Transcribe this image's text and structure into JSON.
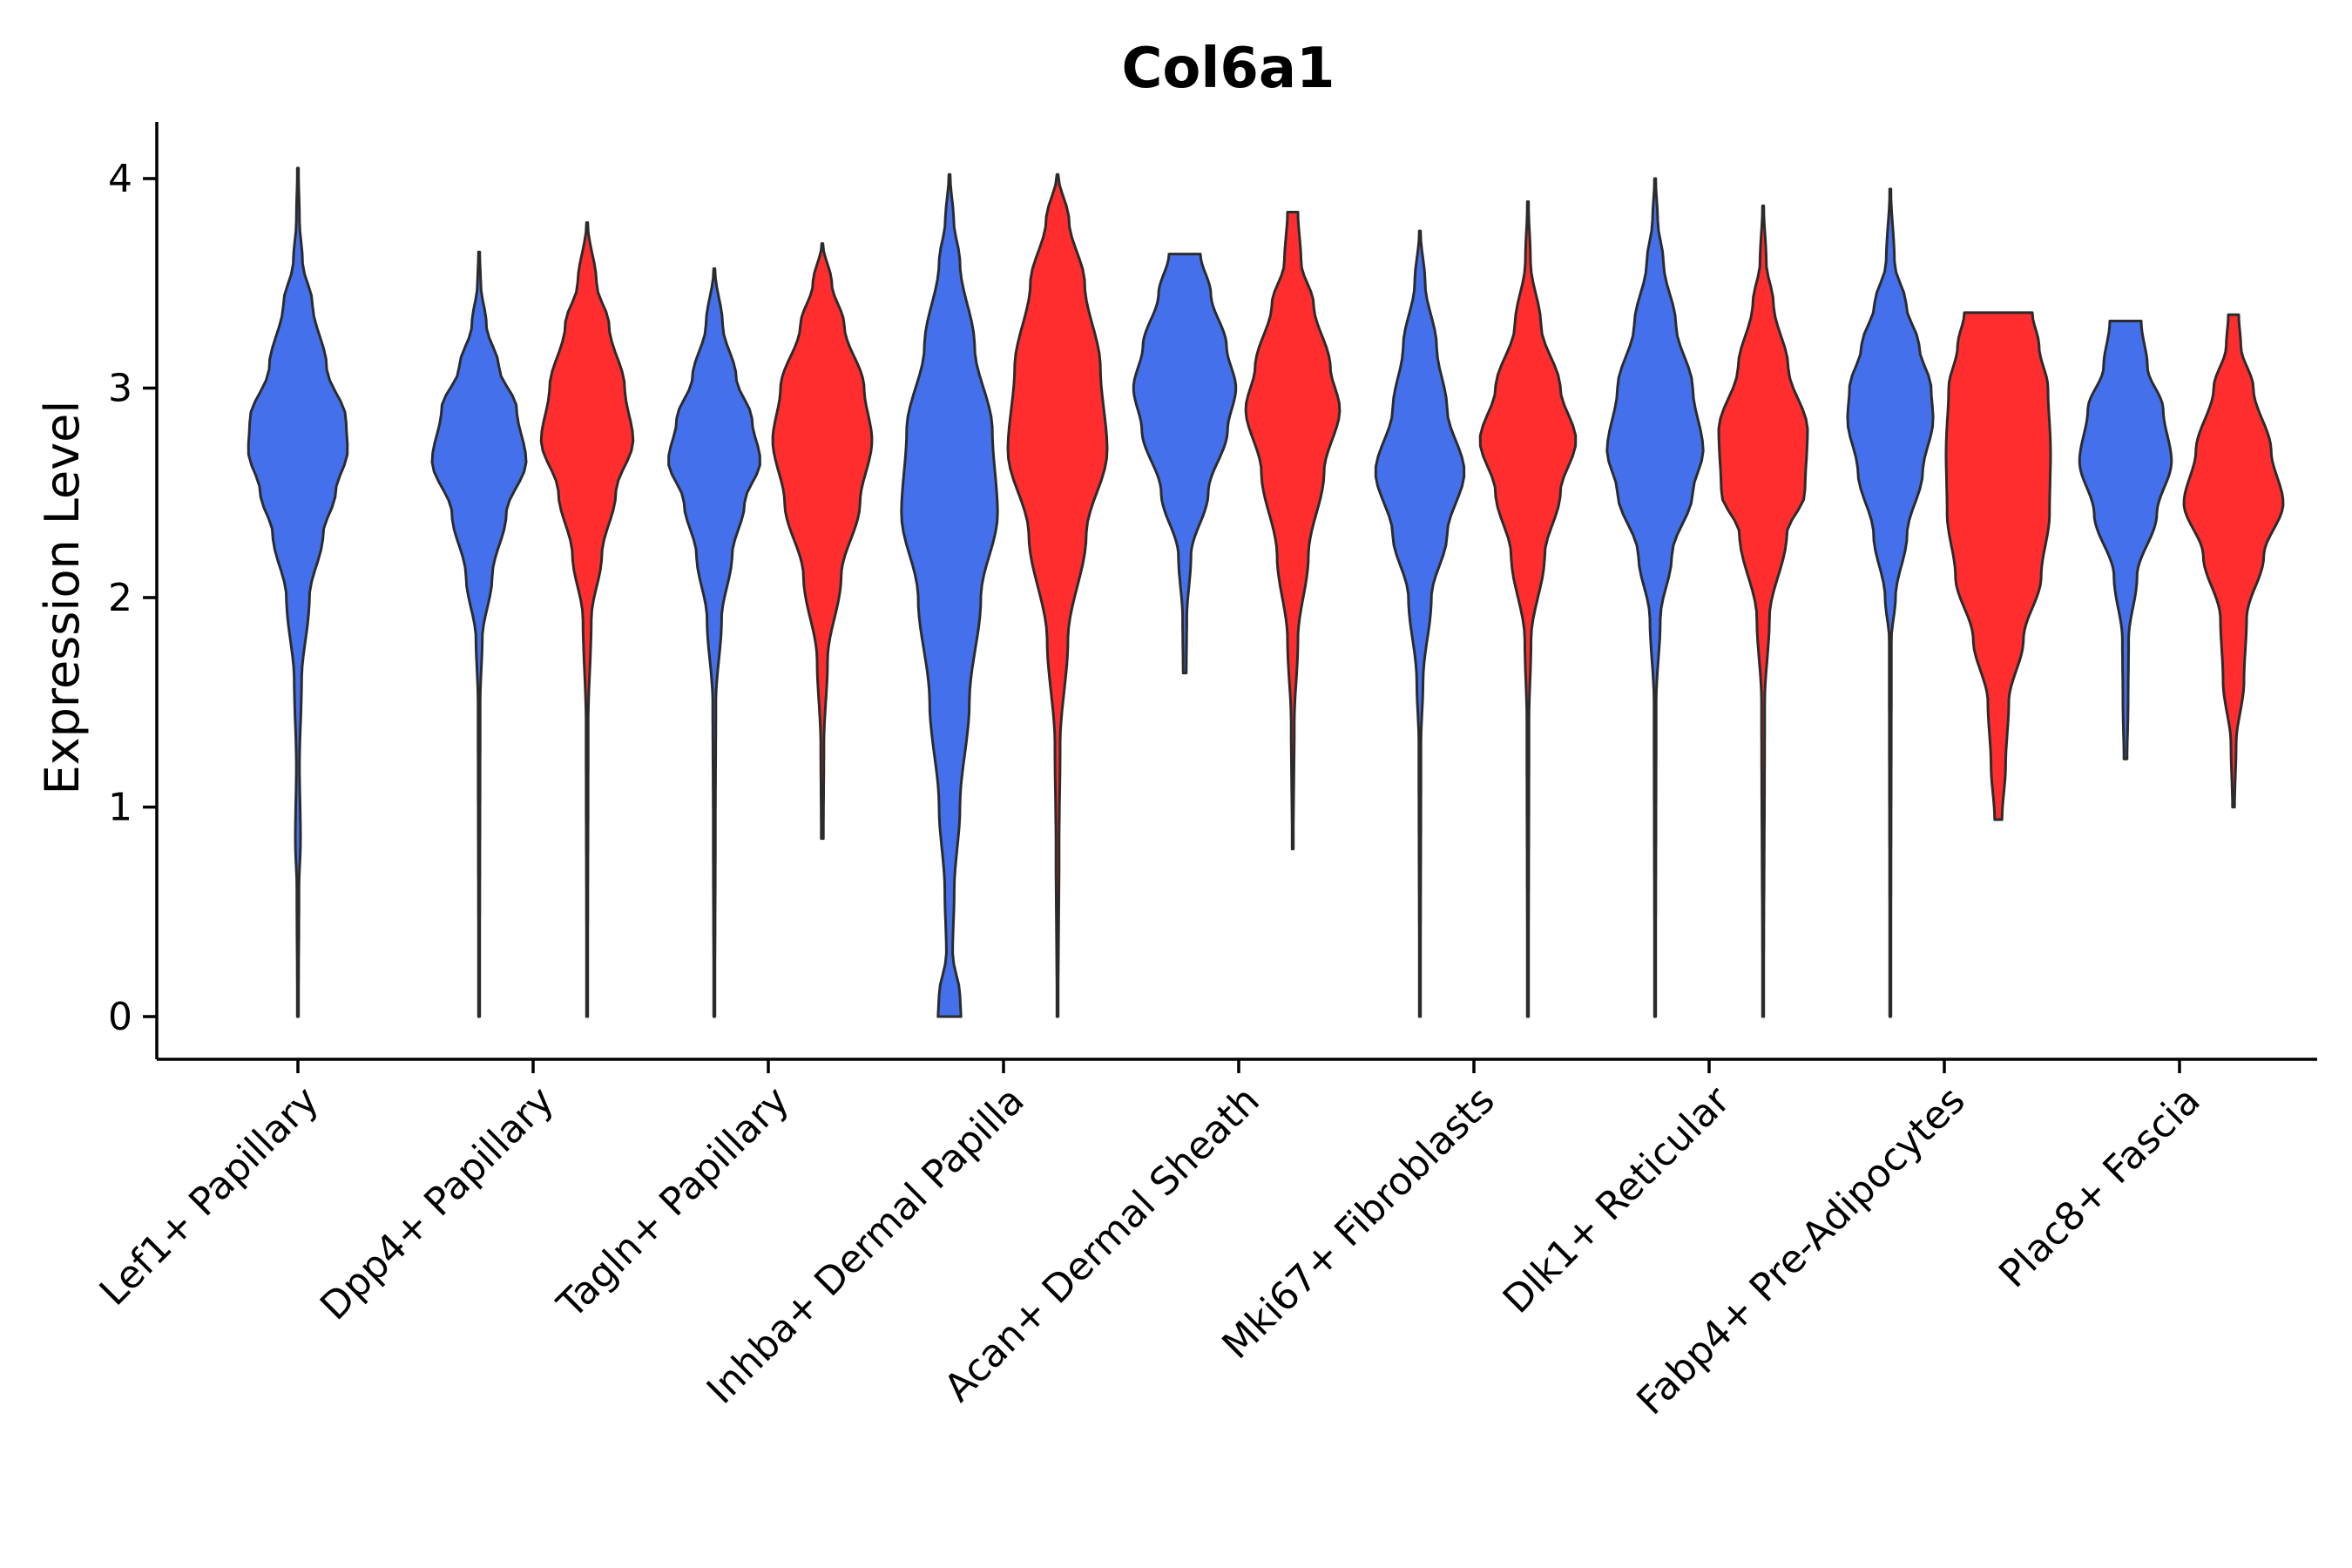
{
  "chart_data": {
    "type": "violin",
    "title": "Col6a1",
    "xlabel": "",
    "ylabel": "Expression Level",
    "ylim": [
      -0.2,
      4.25
    ],
    "yticks": [
      "0",
      "1",
      "2",
      "3",
      "4"
    ],
    "grid": false,
    "colors": {
      "series_a": "#4470EC",
      "series_b": "#FF2D2D"
    },
    "categories": [
      "Lef1+ Papillary",
      "Dpp4+ Papillary",
      "Tagln+ Papillary",
      "Inhba+ Dermal Papilla",
      "Acan+ Dermal Sheath",
      "Mki67+ Fibroblasts",
      "Dlk1+ Reticular",
      "Fabp4+ Pre-Adipocytes",
      "Plac8+ Fascia"
    ],
    "series": [
      {
        "name": "blue",
        "color": "#4470EC",
        "violins": [
          {
            "category": 0,
            "min": 0.0,
            "max": 4.05,
            "profile": [
              [
                0.0,
                0.01
              ],
              [
                0.6,
                0.02
              ],
              [
                0.85,
                0.05
              ],
              [
                1.2,
                0.03
              ],
              [
                1.6,
                0.07
              ],
              [
                2.0,
                0.22
              ],
              [
                2.3,
                0.48
              ],
              [
                2.5,
                0.72
              ],
              [
                2.7,
                0.95
              ],
              [
                2.85,
                0.92
              ],
              [
                3.1,
                0.55
              ],
              [
                3.4,
                0.28
              ],
              [
                3.6,
                0.09
              ],
              [
                3.8,
                0.03
              ],
              [
                4.05,
                0.01
              ]
            ]
          },
          {
            "category": 1,
            "min": 0.0,
            "max": 3.65,
            "profile": [
              [
                0.0,
                0.01
              ],
              [
                1.5,
                0.02
              ],
              [
                1.8,
                0.06
              ],
              [
                2.1,
                0.25
              ],
              [
                2.4,
                0.52
              ],
              [
                2.65,
                0.9
              ],
              [
                2.9,
                0.72
              ],
              [
                3.1,
                0.38
              ],
              [
                3.3,
                0.14
              ],
              [
                3.5,
                0.03
              ],
              [
                3.65,
                0.01
              ]
            ]
          },
          {
            "category": 2,
            "min": 0.0,
            "max": 3.57,
            "profile": [
              [
                0.0,
                0.01
              ],
              [
                0.9,
                0.02
              ],
              [
                1.5,
                0.03
              ],
              [
                1.9,
                0.14
              ],
              [
                2.2,
                0.34
              ],
              [
                2.45,
                0.58
              ],
              [
                2.65,
                0.88
              ],
              [
                2.85,
                0.72
              ],
              [
                3.05,
                0.42
              ],
              [
                3.3,
                0.16
              ],
              [
                3.57,
                0.01
              ]
            ]
          },
          {
            "category": 3,
            "min": 0.0,
            "max": 4.02,
            "profile": [
              [
                0.0,
                0.22
              ],
              [
                0.1,
                0.2
              ],
              [
                0.3,
                0.06
              ],
              [
                0.6,
                0.09
              ],
              [
                1.0,
                0.2
              ],
              [
                1.5,
                0.38
              ],
              [
                2.0,
                0.6
              ],
              [
                2.4,
                0.92
              ],
              [
                2.8,
                0.82
              ],
              [
                3.2,
                0.48
              ],
              [
                3.6,
                0.2
              ],
              [
                3.8,
                0.08
              ],
              [
                4.02,
                0.01
              ]
            ]
          },
          {
            "category": 4,
            "min": 1.64,
            "max": 3.64,
            "profile": [
              [
                1.64,
                0.03
              ],
              [
                1.9,
                0.04
              ],
              [
                2.2,
                0.12
              ],
              [
                2.5,
                0.45
              ],
              [
                2.8,
                0.82
              ],
              [
                3.0,
                0.98
              ],
              [
                3.2,
                0.8
              ],
              [
                3.45,
                0.5
              ],
              [
                3.64,
                0.3
              ]
            ]
          },
          {
            "category": 5,
            "min": 0.0,
            "max": 3.75,
            "profile": [
              [
                0.0,
                0.01
              ],
              [
                1.3,
                0.02
              ],
              [
                1.6,
                0.06
              ],
              [
                2.0,
                0.22
              ],
              [
                2.3,
                0.52
              ],
              [
                2.6,
                0.85
              ],
              [
                2.9,
                0.52
              ],
              [
                3.2,
                0.32
              ],
              [
                3.5,
                0.1
              ],
              [
                3.75,
                0.01
              ]
            ]
          },
          {
            "category": 6,
            "min": 0.0,
            "max": 4.0,
            "profile": [
              [
                0.0,
                0.01
              ],
              [
                1.5,
                0.02
              ],
              [
                1.9,
                0.1
              ],
              [
                2.2,
                0.32
              ],
              [
                2.5,
                0.72
              ],
              [
                2.7,
                0.92
              ],
              [
                3.0,
                0.72
              ],
              [
                3.3,
                0.4
              ],
              [
                3.6,
                0.16
              ],
              [
                3.8,
                0.05
              ],
              [
                4.0,
                0.01
              ]
            ]
          },
          {
            "category": 7,
            "min": 0.0,
            "max": 3.95,
            "profile": [
              [
                0.0,
                0.01
              ],
              [
                1.8,
                0.02
              ],
              [
                2.0,
                0.1
              ],
              [
                2.3,
                0.32
              ],
              [
                2.6,
                0.62
              ],
              [
                2.85,
                0.82
              ],
              [
                3.0,
                0.78
              ],
              [
                3.2,
                0.55
              ],
              [
                3.4,
                0.3
              ],
              [
                3.6,
                0.08
              ],
              [
                3.95,
                0.01
              ]
            ]
          },
          {
            "category": 8,
            "min": 1.23,
            "max": 3.32,
            "profile": [
              [
                1.23,
                0.03
              ],
              [
                1.5,
                0.05
              ],
              [
                1.8,
                0.06
              ],
              [
                2.1,
                0.22
              ],
              [
                2.4,
                0.6
              ],
              [
                2.65,
                0.88
              ],
              [
                2.9,
                0.72
              ],
              [
                3.1,
                0.42
              ],
              [
                3.32,
                0.3
              ]
            ]
          }
        ]
      },
      {
        "name": "red",
        "color": "#FF2D2D",
        "violins": [
          {
            "category": 1,
            "min": 0.0,
            "max": 3.79,
            "profile": [
              [
                0.0,
                0.01
              ],
              [
                1.4,
                0.02
              ],
              [
                1.9,
                0.08
              ],
              [
                2.2,
                0.28
              ],
              [
                2.5,
                0.55
              ],
              [
                2.75,
                0.88
              ],
              [
                3.0,
                0.72
              ],
              [
                3.3,
                0.42
              ],
              [
                3.5,
                0.18
              ],
              [
                3.79,
                0.01
              ]
            ]
          },
          {
            "category": 2,
            "min": 0.85,
            "max": 3.69,
            "profile": [
              [
                0.85,
                0.02
              ],
              [
                1.3,
                0.03
              ],
              [
                1.7,
                0.1
              ],
              [
                2.1,
                0.36
              ],
              [
                2.45,
                0.72
              ],
              [
                2.75,
                0.95
              ],
              [
                3.0,
                0.8
              ],
              [
                3.3,
                0.42
              ],
              [
                3.5,
                0.18
              ],
              [
                3.69,
                0.01
              ]
            ]
          },
          {
            "category": 3,
            "min": 0.0,
            "max": 4.02,
            "profile": [
              [
                0.0,
                0.01
              ],
              [
                0.8,
                0.03
              ],
              [
                1.3,
                0.05
              ],
              [
                1.8,
                0.2
              ],
              [
                2.3,
                0.55
              ],
              [
                2.7,
                0.95
              ],
              [
                3.1,
                0.82
              ],
              [
                3.5,
                0.52
              ],
              [
                3.8,
                0.22
              ],
              [
                4.02,
                0.01
              ]
            ]
          },
          {
            "category": 4,
            "min": 0.8,
            "max": 3.84,
            "profile": [
              [
                0.8,
                0.01
              ],
              [
                1.4,
                0.03
              ],
              [
                1.8,
                0.1
              ],
              [
                2.2,
                0.3
              ],
              [
                2.6,
                0.6
              ],
              [
                2.9,
                0.9
              ],
              [
                3.1,
                0.72
              ],
              [
                3.4,
                0.4
              ],
              [
                3.6,
                0.16
              ],
              [
                3.84,
                0.1
              ]
            ]
          },
          {
            "category": 5,
            "min": 0.0,
            "max": 3.89,
            "profile": [
              [
                0.0,
                0.01
              ],
              [
                1.4,
                0.02
              ],
              [
                1.8,
                0.06
              ],
              [
                2.2,
                0.32
              ],
              [
                2.5,
                0.62
              ],
              [
                2.75,
                0.92
              ],
              [
                3.0,
                0.62
              ],
              [
                3.3,
                0.25
              ],
              [
                3.6,
                0.05
              ],
              [
                3.89,
                0.01
              ]
            ]
          },
          {
            "category": 6,
            "min": 0.0,
            "max": 3.87,
            "profile": [
              [
                0.0,
                0.01
              ],
              [
                1.5,
                0.03
              ],
              [
                1.9,
                0.12
              ],
              [
                2.3,
                0.45
              ],
              [
                2.5,
                0.8
              ],
              [
                2.8,
                0.85
              ],
              [
                3.1,
                0.48
              ],
              [
                3.4,
                0.2
              ],
              [
                3.6,
                0.06
              ],
              [
                3.87,
                0.01
              ]
            ]
          },
          {
            "category": 7,
            "min": 0.94,
            "max": 3.36,
            "profile": [
              [
                0.94,
                0.07
              ],
              [
                1.2,
                0.14
              ],
              [
                1.5,
                0.2
              ],
              [
                1.8,
                0.48
              ],
              [
                2.1,
                0.82
              ],
              [
                2.4,
                0.98
              ],
              [
                2.7,
                1.0
              ],
              [
                3.0,
                0.95
              ],
              [
                3.2,
                0.78
              ],
              [
                3.36,
                0.65
              ]
            ]
          },
          {
            "category": 8,
            "min": 1.0,
            "max": 3.35,
            "profile": [
              [
                1.0,
                0.02
              ],
              [
                1.3,
                0.05
              ],
              [
                1.6,
                0.2
              ],
              [
                1.9,
                0.25
              ],
              [
                2.2,
                0.58
              ],
              [
                2.45,
                0.95
              ],
              [
                2.7,
                0.72
              ],
              [
                3.0,
                0.38
              ],
              [
                3.2,
                0.14
              ],
              [
                3.35,
                0.1
              ]
            ]
          }
        ]
      }
    ]
  }
}
